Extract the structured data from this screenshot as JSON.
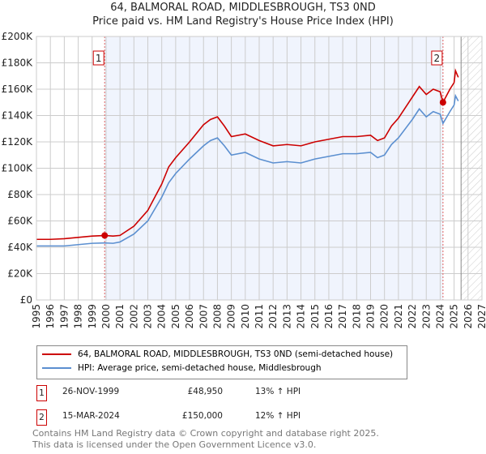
{
  "title_line1": "64, BALMORAL ROAD, MIDDLESBROUGH, TS3 0ND",
  "title_line2": "Price paid vs. HM Land Registry's House Price Index (HPI)",
  "chart_data": {
    "type": "line",
    "title": "Price paid vs. HM Land Registry's House Price Index (HPI)",
    "xlim": [
      1995,
      2027
    ],
    "ylim": [
      0,
      200000
    ],
    "x_ticks": [
      "1995",
      "1996",
      "1997",
      "1998",
      "1999",
      "2000",
      "2001",
      "2002",
      "2003",
      "2004",
      "2005",
      "2006",
      "2007",
      "2008",
      "2009",
      "2010",
      "2011",
      "2012",
      "2013",
      "2014",
      "2015",
      "2016",
      "2017",
      "2018",
      "2019",
      "2020",
      "2021",
      "2022",
      "2023",
      "2024",
      "2025",
      "2026",
      "2027"
    ],
    "y_ticks": [
      {
        "v": 0,
        "label": "£0"
      },
      {
        "v": 20000,
        "label": "£20K"
      },
      {
        "v": 40000,
        "label": "£40K"
      },
      {
        "v": 60000,
        "label": "£60K"
      },
      {
        "v": 80000,
        "label": "£80K"
      },
      {
        "v": 100000,
        "label": "£100K"
      },
      {
        "v": 120000,
        "label": "£120K"
      },
      {
        "v": 140000,
        "label": "£140K"
      },
      {
        "v": 160000,
        "label": "£160K"
      },
      {
        "v": 180000,
        "label": "£180K"
      },
      {
        "v": 200000,
        "label": "£200K"
      }
    ],
    "grid": true,
    "series": [
      {
        "name": "64, BALMORAL ROAD, MIDDLESBROUGH, TS3 0ND (semi-detached house)",
        "color": "#cc0000",
        "x": [
          1995,
          1996,
          1997,
          1998,
          1999,
          1999.9,
          2000.5,
          2001,
          2002,
          2003,
          2004,
          2004.5,
          2005,
          2006,
          2007,
          2007.5,
          2008,
          2008.5,
          2009,
          2010,
          2011,
          2012,
          2013,
          2014,
          2015,
          2016,
          2017,
          2018,
          2019,
          2019.5,
          2020,
          2020.5,
          2021,
          2022,
          2022.5,
          2023,
          2023.5,
          2024,
          2024.2,
          2024.7,
          2025,
          2025.1,
          2025.3
        ],
        "y": [
          46000,
          46000,
          46500,
          47500,
          48500,
          48950,
          48500,
          49000,
          56000,
          68000,
          88000,
          101000,
          108000,
          120000,
          133000,
          137000,
          139000,
          132000,
          124000,
          126000,
          121000,
          117000,
          118000,
          117000,
          120000,
          122000,
          124000,
          124000,
          125000,
          121000,
          123000,
          132000,
          138000,
          154000,
          162000,
          156000,
          160000,
          158000,
          150000,
          160000,
          165000,
          174000,
          169000
        ]
      },
      {
        "name": "HPI: Average price, semi-detached house, Middlesbrough",
        "color": "#5b8fd0",
        "x": [
          1995,
          1996,
          1997,
          1998,
          1999,
          1999.9,
          2000.5,
          2001,
          2002,
          2003,
          2004,
          2004.5,
          2005,
          2006,
          2007,
          2007.5,
          2008,
          2008.5,
          2009,
          2010,
          2011,
          2012,
          2013,
          2014,
          2015,
          2016,
          2017,
          2018,
          2019,
          2019.5,
          2020,
          2020.5,
          2021,
          2022,
          2022.5,
          2023,
          2023.5,
          2024,
          2024.2,
          2024.7,
          2025,
          2025.1,
          2025.3
        ],
        "y": [
          41000,
          41000,
          41000,
          42000,
          43000,
          43300,
          43000,
          44000,
          50000,
          60000,
          78000,
          89000,
          96000,
          107000,
          117000,
          121000,
          123000,
          117000,
          110000,
          112000,
          107000,
          104000,
          105000,
          104000,
          107000,
          109000,
          111000,
          111000,
          112000,
          108000,
          110000,
          118000,
          123000,
          137000,
          145000,
          139000,
          143000,
          141000,
          134000,
          143000,
          148000,
          155000,
          151000
        ]
      }
    ],
    "sales": [
      {
        "label": "1",
        "x": 1999.9,
        "y": 48950
      },
      {
        "label": "2",
        "x": 2024.2,
        "y": 150000
      }
    ],
    "forecast_start": 2025.5
  },
  "legend": {
    "series1": "64, BALMORAL ROAD, MIDDLESBROUGH, TS3 0ND (semi-detached house)",
    "series2": "HPI: Average price, semi-detached house, Middlesbrough"
  },
  "transactions": [
    {
      "num": "1",
      "date": "26-NOV-1999",
      "price": "£48,950",
      "hpi": "13% ↑ HPI"
    },
    {
      "num": "2",
      "date": "15-MAR-2024",
      "price": "£150,000",
      "hpi": "12% ↑ HPI"
    }
  ],
  "footer_line1": "Contains HM Land Registry data © Crown copyright and database right 2025.",
  "footer_line2": "This data is licensed under the Open Government Licence v3.0."
}
